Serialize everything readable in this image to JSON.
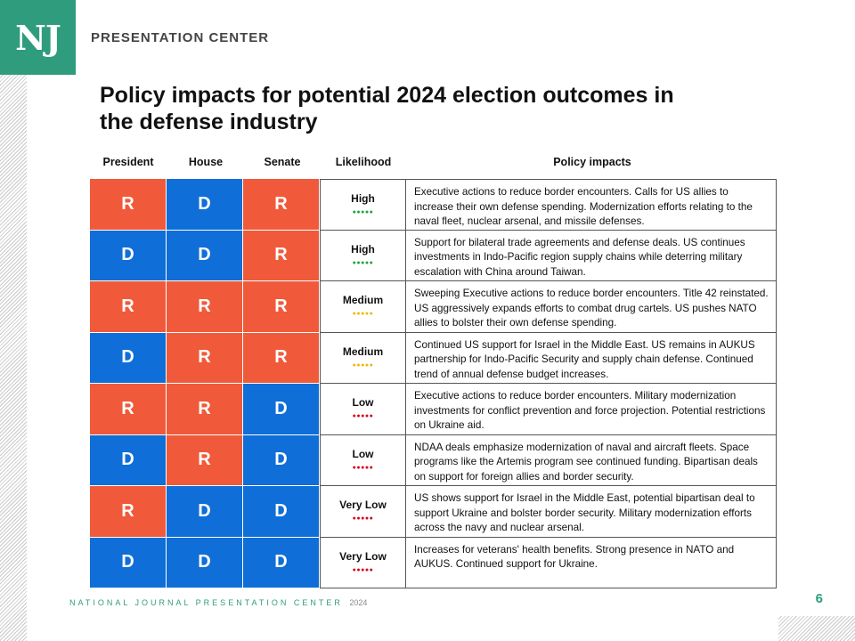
{
  "logo": {
    "text": "NJ"
  },
  "brand": "PRESENTATION CENTER",
  "title": "Policy impacts for potential 2024 election outcomes in the defense industry",
  "headers": {
    "president": "President",
    "house": "House",
    "senate": "Senate",
    "likelihood": "Likelihood",
    "policy": "Policy impacts"
  },
  "colors": {
    "R": "#f05a3a",
    "D": "#0f6ed8",
    "High": "#1ea33a",
    "Medium": "#f2b705",
    "Low": "#d8001c",
    "Very Low": "#d8001c"
  },
  "rows": [
    {
      "president": "R",
      "house": "D",
      "senate": "R",
      "likelihood": "High",
      "dots": "●●●●●",
      "impact": "Executive actions to reduce border encounters. Calls for US allies to increase their own defense spending. Modernization efforts relating to the naval fleet, nuclear arsenal, and missile defenses."
    },
    {
      "president": "D",
      "house": "D",
      "senate": "R",
      "likelihood": "High",
      "dots": "●●●●●",
      "impact": "Support for bilateral trade agreements and defense deals. US continues investments in Indo-Pacific region supply chains while deterring military escalation with China around Taiwan."
    },
    {
      "president": "R",
      "house": "R",
      "senate": "R",
      "likelihood": "Medium",
      "dots": "●●●●●",
      "impact": "Sweeping Executive actions to reduce border encounters. Title 42 reinstated. US aggressively expands efforts to combat drug cartels. US pushes NATO allies to bolster their own defense spending."
    },
    {
      "president": "D",
      "house": "R",
      "senate": "R",
      "likelihood": "Medium",
      "dots": "●●●●●",
      "impact": "Continued US support for Israel in the Middle East. US remains in AUKUS partnership for Indo-Pacific Security and supply chain defense. Continued trend of annual defense budget increases."
    },
    {
      "president": "R",
      "house": "R",
      "senate": "D",
      "likelihood": "Low",
      "dots": "●●●●●",
      "impact": "Executive actions to reduce border encounters. Military modernization investments for conflict prevention and force projection. Potential restrictions on Ukraine aid."
    },
    {
      "president": "D",
      "house": "R",
      "senate": "D",
      "likelihood": "Low",
      "dots": "●●●●●",
      "impact": "NDAA deals emphasize modernization of naval and aircraft fleets. Space programs like the Artemis program see continued funding. Bipartisan deals on support for foreign allies and border security."
    },
    {
      "president": "R",
      "house": "D",
      "senate": "D",
      "likelihood": "Very Low",
      "dots": "●●●●●",
      "impact": "US shows support for Israel in the Middle East, potential bipartisan deal to support Ukraine and bolster border security. Military modernization efforts across the navy and nuclear arsenal."
    },
    {
      "president": "D",
      "house": "D",
      "senate": "D",
      "likelihood": "Very Low",
      "dots": "●●●●●",
      "impact": "Increases for veterans' health benefits. Strong presence in NATO and AUKUS. Continued support for Ukraine."
    }
  ],
  "footer": {
    "text": "NATIONAL JOURNAL PRESENTATION CENTER",
    "year": "2024"
  },
  "page_number": "6"
}
